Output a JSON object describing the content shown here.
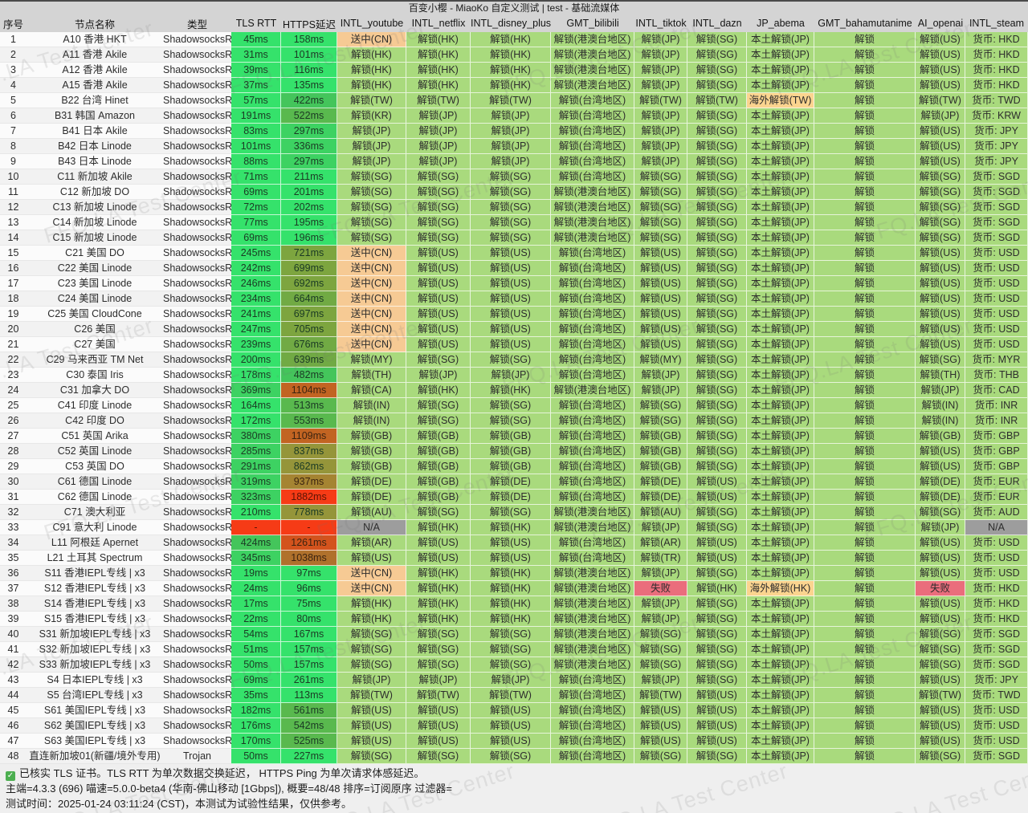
{
  "title": "百变小樱 - MiaoKo 自定义测试 | test - 基础流媒体",
  "watermark": "FFQ.LA Test Center",
  "columns": [
    "序号",
    "节点名称",
    "类型",
    "TLS RTT",
    "HTTPS延迟",
    "INTL_youtube",
    "INTL_netflix",
    "INTL_disney_plus",
    "GMT_bilibili",
    "INTL_tiktok",
    "INTL_dazn",
    "JP_abema",
    "GMT_bahamutanime",
    "AI_openai",
    "INTL_steam"
  ],
  "palette": {
    "classes": {
      "unlock-bg": "#a9da7d",
      "unlock-text": "#3a4632",
      "cn-bg": "#f6ca94",
      "cn-text": "#5c462a",
      "oversea-bg": "#fbd48f",
      "oversea-text": "#7a431d",
      "fail-bg": "#ea6d7c",
      "fail-text": "#74242f",
      "na-bg": "#9d9d9d",
      "na-text": "#333333",
      "header-bg": "#d4d4d4",
      "footer-bg": "#efefef",
      "row-odd": "#fbfbfb",
      "row-even": "#f2f2f2",
      "check-green": "#4caf50"
    },
    "latency_scale": [
      [
        280,
        "#35e26b"
      ],
      [
        400,
        "#3dd262"
      ],
      [
        500,
        "#44c55b"
      ],
      [
        600,
        "#59b94e"
      ],
      [
        680,
        "#71aa44"
      ],
      [
        760,
        "#7da53f"
      ],
      [
        900,
        "#95953a"
      ],
      [
        1000,
        "#a58432"
      ],
      [
        1100,
        "#b0712c"
      ],
      [
        1200,
        "#c26422"
      ],
      [
        1500,
        "#d3531d"
      ],
      [
        99999,
        "#f63b16"
      ]
    ],
    "latency_error": "#f63b16"
  },
  "footer": {
    "check_note": "已核实 TLS 证书。TLS RTT 为单次数据交换延迟， HTTPS Ping 为单次请求体感延迟。",
    "meta_line": "主端=4.3.3 (696) 喵速=5.0.0-beta4 (华南-佛山移动 [1Gbps]), 概要=48/48 排序=订阅原序 过滤器=",
    "time_line": "测试时间：2025-01-24 03:11:24 (CST)，本测试为试验性结果，仅供参考。"
  },
  "rows": [
    [
      "1",
      "A10 香港 HKT",
      "ShadowsocksR",
      "45ms",
      "158ms",
      "送中(CN)",
      "解锁(HK)",
      "解锁(HK)",
      "解锁(港澳台地区)",
      "解锁(JP)",
      "解锁(SG)",
      "本土解锁(JP)",
      "解锁",
      "解锁(US)",
      "货币: HKD"
    ],
    [
      "2",
      "A11 香港 Akile",
      "ShadowsocksR",
      "31ms",
      "101ms",
      "解锁(HK)",
      "解锁(HK)",
      "解锁(HK)",
      "解锁(港澳台地区)",
      "解锁(JP)",
      "解锁(SG)",
      "本土解锁(JP)",
      "解锁",
      "解锁(US)",
      "货币: HKD"
    ],
    [
      "3",
      "A12 香港 Akile",
      "ShadowsocksR",
      "39ms",
      "116ms",
      "解锁(HK)",
      "解锁(HK)",
      "解锁(HK)",
      "解锁(港澳台地区)",
      "解锁(JP)",
      "解锁(SG)",
      "本土解锁(JP)",
      "解锁",
      "解锁(US)",
      "货币: HKD"
    ],
    [
      "4",
      "A15 香港 Akile",
      "ShadowsocksR",
      "37ms",
      "135ms",
      "解锁(HK)",
      "解锁(HK)",
      "解锁(HK)",
      "解锁(港澳台地区)",
      "解锁(JP)",
      "解锁(SG)",
      "本土解锁(JP)",
      "解锁",
      "解锁(US)",
      "货币: HKD"
    ],
    [
      "5",
      "B22 台湾 Hinet",
      "ShadowsocksR",
      "57ms",
      "422ms",
      "解锁(TW)",
      "解锁(TW)",
      "解锁(TW)",
      "解锁(台湾地区)",
      "解锁(TW)",
      "解锁(TW)",
      "海外解锁(TW)",
      "解锁",
      "解锁(TW)",
      "货币: TWD"
    ],
    [
      "6",
      "B31 韩国 Amazon",
      "ShadowsocksR",
      "191ms",
      "522ms",
      "解锁(KR)",
      "解锁(JP)",
      "解锁(JP)",
      "解锁(台湾地区)",
      "解锁(JP)",
      "解锁(SG)",
      "本土解锁(JP)",
      "解锁",
      "解锁(JP)",
      "货币: KRW"
    ],
    [
      "7",
      "B41 日本 Akile",
      "ShadowsocksR",
      "83ms",
      "297ms",
      "解锁(JP)",
      "解锁(JP)",
      "解锁(JP)",
      "解锁(台湾地区)",
      "解锁(JP)",
      "解锁(SG)",
      "本土解锁(JP)",
      "解锁",
      "解锁(US)",
      "货币: JPY"
    ],
    [
      "8",
      "B42 日本 Linode",
      "ShadowsocksR",
      "101ms",
      "336ms",
      "解锁(JP)",
      "解锁(JP)",
      "解锁(JP)",
      "解锁(台湾地区)",
      "解锁(JP)",
      "解锁(SG)",
      "本土解锁(JP)",
      "解锁",
      "解锁(US)",
      "货币: JPY"
    ],
    [
      "9",
      "B43 日本 Linode",
      "ShadowsocksR",
      "88ms",
      "297ms",
      "解锁(JP)",
      "解锁(JP)",
      "解锁(JP)",
      "解锁(台湾地区)",
      "解锁(JP)",
      "解锁(SG)",
      "本土解锁(JP)",
      "解锁",
      "解锁(US)",
      "货币: JPY"
    ],
    [
      "10",
      "C11 新加坡 Akile",
      "ShadowsocksR",
      "71ms",
      "211ms",
      "解锁(SG)",
      "解锁(SG)",
      "解锁(SG)",
      "解锁(台湾地区)",
      "解锁(SG)",
      "解锁(SG)",
      "本土解锁(JP)",
      "解锁",
      "解锁(SG)",
      "货币: SGD"
    ],
    [
      "11",
      "C12 新加坡 DO",
      "ShadowsocksR",
      "69ms",
      "201ms",
      "解锁(SG)",
      "解锁(SG)",
      "解锁(SG)",
      "解锁(港澳台地区)",
      "解锁(SG)",
      "解锁(SG)",
      "本土解锁(JP)",
      "解锁",
      "解锁(SG)",
      "货币: SGD"
    ],
    [
      "12",
      "C13 新加坡 Linode",
      "ShadowsocksR",
      "72ms",
      "202ms",
      "解锁(SG)",
      "解锁(SG)",
      "解锁(SG)",
      "解锁(港澳台地区)",
      "解锁(SG)",
      "解锁(SG)",
      "本土解锁(JP)",
      "解锁",
      "解锁(SG)",
      "货币: SGD"
    ],
    [
      "13",
      "C14 新加坡 Linode",
      "ShadowsocksR",
      "77ms",
      "195ms",
      "解锁(SG)",
      "解锁(SG)",
      "解锁(SG)",
      "解锁(港澳台地区)",
      "解锁(SG)",
      "解锁(SG)",
      "本土解锁(JP)",
      "解锁",
      "解锁(SG)",
      "货币: SGD"
    ],
    [
      "14",
      "C15 新加坡 Linode",
      "ShadowsocksR",
      "69ms",
      "196ms",
      "解锁(SG)",
      "解锁(SG)",
      "解锁(SG)",
      "解锁(港澳台地区)",
      "解锁(SG)",
      "解锁(SG)",
      "本土解锁(JP)",
      "解锁",
      "解锁(SG)",
      "货币: SGD"
    ],
    [
      "15",
      "C21 美国 DO",
      "ShadowsocksR",
      "245ms",
      "721ms",
      "送中(CN)",
      "解锁(US)",
      "解锁(US)",
      "解锁(台湾地区)",
      "解锁(US)",
      "解锁(SG)",
      "本土解锁(JP)",
      "解锁",
      "解锁(US)",
      "货币: USD"
    ],
    [
      "16",
      "C22 美国 Linode",
      "ShadowsocksR",
      "242ms",
      "699ms",
      "送中(CN)",
      "解锁(US)",
      "解锁(US)",
      "解锁(台湾地区)",
      "解锁(US)",
      "解锁(SG)",
      "本土解锁(JP)",
      "解锁",
      "解锁(US)",
      "货币: USD"
    ],
    [
      "17",
      "C23 美国 Linode",
      "ShadowsocksR",
      "246ms",
      "692ms",
      "送中(CN)",
      "解锁(US)",
      "解锁(US)",
      "解锁(台湾地区)",
      "解锁(US)",
      "解锁(SG)",
      "本土解锁(JP)",
      "解锁",
      "解锁(US)",
      "货币: USD"
    ],
    [
      "18",
      "C24 美国 Linode",
      "ShadowsocksR",
      "234ms",
      "664ms",
      "送中(CN)",
      "解锁(US)",
      "解锁(US)",
      "解锁(台湾地区)",
      "解锁(US)",
      "解锁(SG)",
      "本土解锁(JP)",
      "解锁",
      "解锁(US)",
      "货币: USD"
    ],
    [
      "19",
      "C25 美国 CloudCone",
      "ShadowsocksR",
      "241ms",
      "697ms",
      "送中(CN)",
      "解锁(US)",
      "解锁(US)",
      "解锁(台湾地区)",
      "解锁(US)",
      "解锁(SG)",
      "本土解锁(JP)",
      "解锁",
      "解锁(US)",
      "货币: USD"
    ],
    [
      "20",
      "C26 美国",
      "ShadowsocksR",
      "247ms",
      "705ms",
      "送中(CN)",
      "解锁(US)",
      "解锁(US)",
      "解锁(台湾地区)",
      "解锁(US)",
      "解锁(SG)",
      "本土解锁(JP)",
      "解锁",
      "解锁(US)",
      "货币: USD"
    ],
    [
      "21",
      "C27 美国",
      "ShadowsocksR",
      "239ms",
      "676ms",
      "送中(CN)",
      "解锁(US)",
      "解锁(US)",
      "解锁(台湾地区)",
      "解锁(US)",
      "解锁(SG)",
      "本土解锁(JP)",
      "解锁",
      "解锁(US)",
      "货币: USD"
    ],
    [
      "22",
      "C29 马来西亚 TM Net",
      "ShadowsocksR",
      "200ms",
      "639ms",
      "解锁(MY)",
      "解锁(SG)",
      "解锁(SG)",
      "解锁(台湾地区)",
      "解锁(MY)",
      "解锁(SG)",
      "本土解锁(JP)",
      "解锁",
      "解锁(SG)",
      "货币: MYR"
    ],
    [
      "23",
      "C30 泰国 Iris",
      "ShadowsocksR",
      "178ms",
      "482ms",
      "解锁(TH)",
      "解锁(JP)",
      "解锁(JP)",
      "解锁(台湾地区)",
      "解锁(JP)",
      "解锁(SG)",
      "本土解锁(JP)",
      "解锁",
      "解锁(TH)",
      "货币: THB"
    ],
    [
      "24",
      "C31 加拿大 DO",
      "ShadowsocksR",
      "369ms",
      "1104ms",
      "解锁(CA)",
      "解锁(HK)",
      "解锁(HK)",
      "解锁(港澳台地区)",
      "解锁(JP)",
      "解锁(SG)",
      "本土解锁(JP)",
      "解锁",
      "解锁(JP)",
      "货币: CAD"
    ],
    [
      "25",
      "C41 印度 Linode",
      "ShadowsocksR",
      "164ms",
      "513ms",
      "解锁(IN)",
      "解锁(SG)",
      "解锁(SG)",
      "解锁(台湾地区)",
      "解锁(SG)",
      "解锁(SG)",
      "本土解锁(JP)",
      "解锁",
      "解锁(IN)",
      "货币: INR"
    ],
    [
      "26",
      "C42 印度 DO",
      "ShadowsocksR",
      "172ms",
      "553ms",
      "解锁(IN)",
      "解锁(SG)",
      "解锁(SG)",
      "解锁(台湾地区)",
      "解锁(SG)",
      "解锁(SG)",
      "本土解锁(JP)",
      "解锁",
      "解锁(IN)",
      "货币: INR"
    ],
    [
      "27",
      "C51 英国 Arika",
      "ShadowsocksR",
      "380ms",
      "1109ms",
      "解锁(GB)",
      "解锁(GB)",
      "解锁(GB)",
      "解锁(台湾地区)",
      "解锁(GB)",
      "解锁(SG)",
      "本土解锁(JP)",
      "解锁",
      "解锁(GB)",
      "货币: GBP"
    ],
    [
      "28",
      "C52 英国 Linode",
      "ShadowsocksR",
      "285ms",
      "837ms",
      "解锁(GB)",
      "解锁(GB)",
      "解锁(GB)",
      "解锁(台湾地区)",
      "解锁(GB)",
      "解锁(SG)",
      "本土解锁(JP)",
      "解锁",
      "解锁(US)",
      "货币: GBP"
    ],
    [
      "29",
      "C53 英国 DO",
      "ShadowsocksR",
      "291ms",
      "862ms",
      "解锁(GB)",
      "解锁(GB)",
      "解锁(GB)",
      "解锁(台湾地区)",
      "解锁(GB)",
      "解锁(SG)",
      "本土解锁(JP)",
      "解锁",
      "解锁(US)",
      "货币: GBP"
    ],
    [
      "30",
      "C61 德国 Linode",
      "ShadowsocksR",
      "319ms",
      "937ms",
      "解锁(DE)",
      "解锁(GB)",
      "解锁(DE)",
      "解锁(台湾地区)",
      "解锁(DE)",
      "解锁(US)",
      "本土解锁(JP)",
      "解锁",
      "解锁(DE)",
      "货币: EUR"
    ],
    [
      "31",
      "C62 德国 Linode",
      "ShadowsocksR",
      "323ms",
      "1882ms",
      "解锁(DE)",
      "解锁(GB)",
      "解锁(DE)",
      "解锁(台湾地区)",
      "解锁(DE)",
      "解锁(US)",
      "本土解锁(JP)",
      "解锁",
      "解锁(DE)",
      "货币: EUR"
    ],
    [
      "32",
      "C71 澳大利亚",
      "ShadowsocksR",
      "210ms",
      "778ms",
      "解锁(AU)",
      "解锁(SG)",
      "解锁(SG)",
      "解锁(港澳台地区)",
      "解锁(AU)",
      "解锁(SG)",
      "本土解锁(JP)",
      "解锁",
      "解锁(SG)",
      "货币: AUD"
    ],
    [
      "33",
      "C91 意大利 Linode",
      "ShadowsocksR",
      "-",
      "-",
      "N/A",
      "解锁(HK)",
      "解锁(HK)",
      "解锁(港澳台地区)",
      "解锁(JP)",
      "解锁(SG)",
      "本土解锁(JP)",
      "解锁",
      "解锁(JP)",
      "N/A"
    ],
    [
      "34",
      "L11 阿根廷 Apernet",
      "ShadowsocksR",
      "424ms",
      "1261ms",
      "解锁(AR)",
      "解锁(US)",
      "解锁(US)",
      "解锁(台湾地区)",
      "解锁(AR)",
      "解锁(US)",
      "本土解锁(JP)",
      "解锁",
      "解锁(US)",
      "货币: USD"
    ],
    [
      "35",
      "L21 土耳其 Spectrum",
      "ShadowsocksR",
      "345ms",
      "1038ms",
      "解锁(US)",
      "解锁(US)",
      "解锁(US)",
      "解锁(台湾地区)",
      "解锁(TR)",
      "解锁(US)",
      "本土解锁(JP)",
      "解锁",
      "解锁(US)",
      "货币: USD"
    ],
    [
      "36",
      "S11 香港IEPL专线 | x3",
      "ShadowsocksR",
      "19ms",
      "97ms",
      "送中(CN)",
      "解锁(HK)",
      "解锁(HK)",
      "解锁(港澳台地区)",
      "解锁(JP)",
      "解锁(SG)",
      "本土解锁(JP)",
      "解锁",
      "解锁(US)",
      "货币: USD"
    ],
    [
      "37",
      "S12 香港IEPL专线 | x3",
      "ShadowsocksR",
      "24ms",
      "96ms",
      "送中(CN)",
      "解锁(HK)",
      "解锁(HK)",
      "解锁(港澳台地区)",
      "失败",
      "解锁(HK)",
      "海外解锁(HK)",
      "解锁",
      "失败",
      "货币: HKD"
    ],
    [
      "38",
      "S14 香港IEPL专线 | x3",
      "ShadowsocksR",
      "17ms",
      "75ms",
      "解锁(HK)",
      "解锁(HK)",
      "解锁(HK)",
      "解锁(港澳台地区)",
      "解锁(JP)",
      "解锁(SG)",
      "本土解锁(JP)",
      "解锁",
      "解锁(US)",
      "货币: HKD"
    ],
    [
      "39",
      "S15 香港IEPL专线 | x3",
      "ShadowsocksR",
      "22ms",
      "80ms",
      "解锁(HK)",
      "解锁(HK)",
      "解锁(HK)",
      "解锁(港澳台地区)",
      "解锁(JP)",
      "解锁(SG)",
      "本土解锁(JP)",
      "解锁",
      "解锁(US)",
      "货币: HKD"
    ],
    [
      "40",
      "S31 新加坡IEPL专线 | x3",
      "ShadowsocksR",
      "54ms",
      "167ms",
      "解锁(SG)",
      "解锁(SG)",
      "解锁(SG)",
      "解锁(港澳台地区)",
      "解锁(SG)",
      "解锁(SG)",
      "本土解锁(JP)",
      "解锁",
      "解锁(SG)",
      "货币: SGD"
    ],
    [
      "41",
      "S32 新加坡IEPL专线 | x3",
      "ShadowsocksR",
      "51ms",
      "157ms",
      "解锁(SG)",
      "解锁(SG)",
      "解锁(SG)",
      "解锁(港澳台地区)",
      "解锁(SG)",
      "解锁(SG)",
      "本土解锁(JP)",
      "解锁",
      "解锁(SG)",
      "货币: SGD"
    ],
    [
      "42",
      "S33 新加坡IEPL专线 | x3",
      "ShadowsocksR",
      "50ms",
      "157ms",
      "解锁(SG)",
      "解锁(SG)",
      "解锁(SG)",
      "解锁(港澳台地区)",
      "解锁(SG)",
      "解锁(SG)",
      "本土解锁(JP)",
      "解锁",
      "解锁(SG)",
      "货币: SGD"
    ],
    [
      "43",
      "S4 日本IEPL专线 | x3",
      "ShadowsocksR",
      "69ms",
      "261ms",
      "解锁(JP)",
      "解锁(JP)",
      "解锁(JP)",
      "解锁(台湾地区)",
      "解锁(JP)",
      "解锁(SG)",
      "本土解锁(JP)",
      "解锁",
      "解锁(US)",
      "货币: JPY"
    ],
    [
      "44",
      "S5 台湾IEPL专线 | x3",
      "ShadowsocksR",
      "35ms",
      "113ms",
      "解锁(TW)",
      "解锁(TW)",
      "解锁(TW)",
      "解锁(台湾地区)",
      "解锁(TW)",
      "解锁(US)",
      "本土解锁(JP)",
      "解锁",
      "解锁(TW)",
      "货币: TWD"
    ],
    [
      "45",
      "S61 美国IEPL专线 | x3",
      "ShadowsocksR",
      "182ms",
      "561ms",
      "解锁(US)",
      "解锁(US)",
      "解锁(US)",
      "解锁(台湾地区)",
      "解锁(US)",
      "解锁(US)",
      "本土解锁(JP)",
      "解锁",
      "解锁(US)",
      "货币: USD"
    ],
    [
      "46",
      "S62 美国IEPL专线 | x3",
      "ShadowsocksR",
      "176ms",
      "542ms",
      "解锁(US)",
      "解锁(US)",
      "解锁(US)",
      "解锁(台湾地区)",
      "解锁(US)",
      "解锁(US)",
      "本土解锁(JP)",
      "解锁",
      "解锁(US)",
      "货币: USD"
    ],
    [
      "47",
      "S63 美国IEPL专线 | x3",
      "ShadowsocksR",
      "170ms",
      "525ms",
      "解锁(US)",
      "解锁(US)",
      "解锁(US)",
      "解锁(台湾地区)",
      "解锁(US)",
      "解锁(US)",
      "本土解锁(JP)",
      "解锁",
      "解锁(US)",
      "货币: USD"
    ],
    [
      "48",
      "直连新加坡01(新疆/境外专用)",
      "Trojan",
      "50ms",
      "227ms",
      "解锁(SG)",
      "解锁(SG)",
      "解锁(SG)",
      "解锁(台湾地区)",
      "解锁(SG)",
      "解锁(SG)",
      "本土解锁(JP)",
      "解锁",
      "解锁(SG)",
      "货币: SGD"
    ]
  ]
}
